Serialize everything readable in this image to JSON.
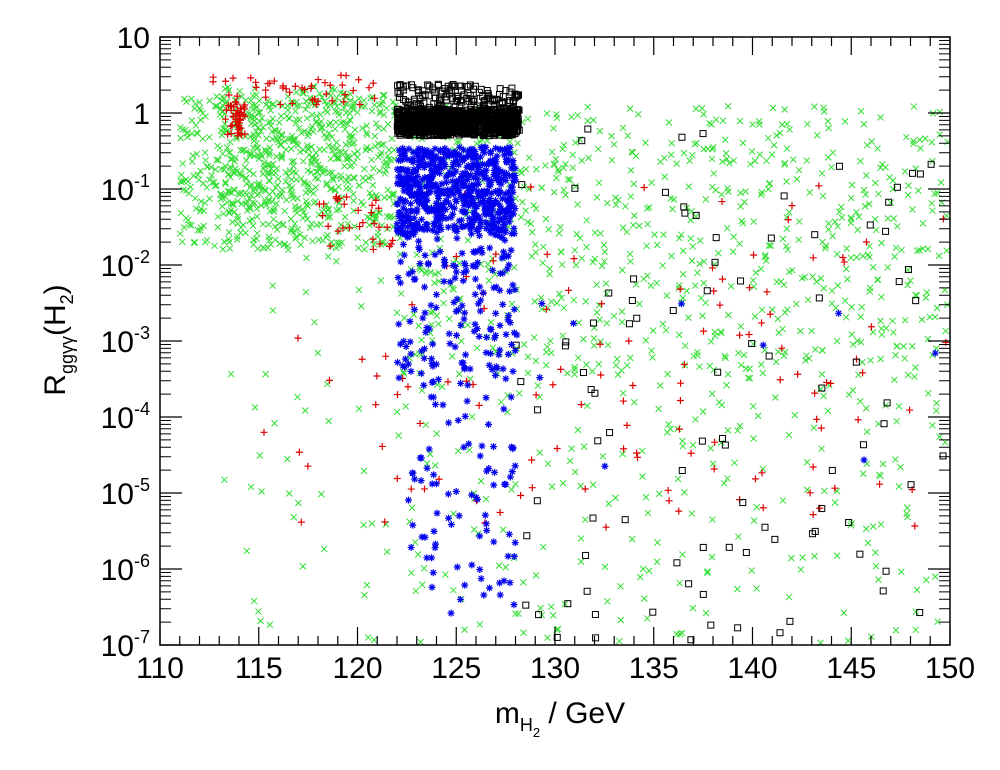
{
  "chart_data": {
    "type": "scatter",
    "log_y": true,
    "xlim": [
      110,
      150
    ],
    "ylim": [
      1e-07,
      10
    ],
    "grid": false,
    "xlabel": {
      "main": "m",
      "sub": "H",
      "subsub": "2",
      "rest": " / GeV"
    },
    "ylabel": {
      "main": "R",
      "sub": "ggγγ",
      "mid": "(H",
      "sub2": "2",
      "end": ")"
    },
    "x_ticks": [
      "110",
      "115",
      "120",
      "125",
      "130",
      "135",
      "140",
      "145",
      "150"
    ],
    "y_ticks": [
      {
        "base": "10",
        "exp": "-7"
      },
      {
        "base": "10",
        "exp": "-6"
      },
      {
        "base": "10",
        "exp": "-5"
      },
      {
        "base": "10",
        "exp": "-4"
      },
      {
        "base": "10",
        "exp": "-3"
      },
      {
        "base": "10",
        "exp": "-2"
      },
      {
        "base": "10",
        "exp": "-1"
      },
      {
        "base": "1",
        "exp": ""
      },
      {
        "base": "10",
        "exp": ""
      }
    ],
    "series": [
      {
        "marker": "x",
        "color": "#33dd33",
        "clusters": [
          {
            "x": [
              111,
              122
            ],
            "logy": [
              -1.8,
              0.25
            ],
            "n": 550
          },
          {
            "x": [
              113,
              120
            ],
            "logy": [
              -1.3,
              0.35
            ],
            "n": 250
          },
          {
            "x": [
              122,
              150
            ],
            "logy": [
              -3.5,
              0.1
            ],
            "n": 700
          },
          {
            "x": [
              122,
              150
            ],
            "logy": [
              -7,
              -3.5
            ],
            "n": 220
          },
          {
            "x": [
              113,
              122
            ],
            "logy": [
              -7,
              -1.8
            ],
            "n": 45
          }
        ]
      },
      {
        "marker": "plus",
        "color": "#dd0000",
        "clusters": [
          {
            "x": [
              113.3,
              114.3
            ],
            "logy": [
              -0.3,
              0.15
            ],
            "n": 45
          },
          {
            "x": [
              112,
              121
            ],
            "logy": [
              0.1,
              0.5
            ],
            "n": 45
          },
          {
            "x": [
              118,
              122
            ],
            "logy": [
              -1.8,
              -1.1
            ],
            "n": 30
          },
          {
            "x": [
              122,
              150
            ],
            "logy": [
              -5.5,
              -0.9
            ],
            "n": 110
          },
          {
            "x": [
              114,
              122
            ],
            "logy": [
              -5.4,
              -2.5
            ],
            "n": 12
          }
        ]
      },
      {
        "marker": "square",
        "color": "#000000",
        "clusters": [
          {
            "x": [
              122,
              128.2
            ],
            "logy": [
              -0.3,
              0.05
            ],
            "n": 850
          },
          {
            "x": [
              122,
              128.2
            ],
            "logy": [
              0.05,
              0.38
            ],
            "n": 140
          },
          {
            "x": [
              128,
              150
            ],
            "logy": [
              -7,
              -0.2
            ],
            "n": 100
          }
        ]
      },
      {
        "marker": "star",
        "color": "#0000ee",
        "clusters": [
          {
            "x": [
              122,
              128
            ],
            "logy": [
              -1.6,
              -0.45
            ],
            "n": 600
          },
          {
            "x": [
              122,
              128
            ],
            "logy": [
              -3.5,
              -1.6
            ],
            "n": 160
          },
          {
            "x": [
              122.5,
              128
            ],
            "logy": [
              -6.6,
              -3.5
            ],
            "n": 90
          },
          {
            "x": [
              128,
              150
            ],
            "logy": [
              -5,
              -2
            ],
            "n": 10
          }
        ]
      }
    ]
  }
}
